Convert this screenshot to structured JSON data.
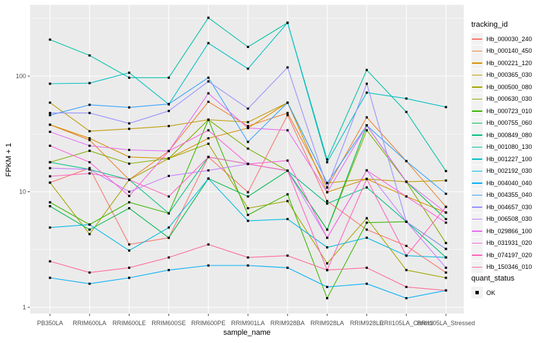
{
  "figure": {
    "panel_bg": "#ebebeb",
    "grid_color": "#ffffff",
    "tick_color": "#333333",
    "tick_label_color": "#4d4d4d",
    "y_axis": {
      "title": "FPKM + 1",
      "tick_labels": [
        "100",
        "10",
        "1"
      ],
      "tick_values": [
        100,
        10,
        1
      ],
      "minor_values": [
        3.162,
        31.62,
        316.2
      ]
    },
    "x_axis": {
      "title": "sample_name"
    }
  },
  "chart_data": {
    "type": "line",
    "title": "",
    "xlabel": "sample_name",
    "ylabel": "FPKM + 1",
    "yscale": "log10",
    "ylim": [
      0.9,
      420
    ],
    "grid": true,
    "legend_position": "right",
    "point_shape": "filled-black-square",
    "x": [
      "PB350LA",
      "RRIM600LA",
      "RRIM600LE",
      "RRIM600SE",
      "RRIM600PE",
      "RRIM901LA",
      "RRIM928BA",
      "RRIM928LA",
      "RRIM928LE",
      "RRII105LA_Control",
      "RRII105LA_Stressed"
    ],
    "series": [
      {
        "name": "Hb_000030_240",
        "color": "#F8766D",
        "values": [
          12,
          16,
          3.5,
          4.0,
          20,
          9.9,
          46,
          8.3,
          4.7,
          3.4,
          2.0
        ]
      },
      {
        "name": "Hb_000140_450",
        "color": "#EA8331",
        "values": [
          38,
          28,
          12.7,
          22.5,
          60,
          37,
          48,
          10.9,
          44,
          18.4,
          7.4
        ]
      },
      {
        "name": "Hb_000221_120",
        "color": "#D89000",
        "values": [
          38,
          29,
          20,
          19.4,
          29,
          35.6,
          59,
          9.9,
          12.9,
          9.1,
          6.6
        ]
      },
      {
        "name": "Hb_000365_030",
        "color": "#C09B00",
        "values": [
          59,
          33.4,
          35,
          37,
          42,
          40,
          59,
          11.9,
          12.9,
          12.2,
          12.5
        ]
      },
      {
        "name": "Hb_000500_080",
        "color": "#A3A500",
        "values": [
          12,
          4.3,
          12.7,
          19.4,
          26,
          7.2,
          8.3,
          2.4,
          5.9,
          2.1,
          1.8
        ]
      },
      {
        "name": "Hb_000630_030",
        "color": "#7CAE00",
        "values": [
          18,
          22.6,
          17.5,
          19.4,
          42,
          23.6,
          15.2,
          4.7,
          34,
          12.2,
          3.6
        ]
      },
      {
        "name": "Hb_000723_010",
        "color": "#39B600",
        "values": [
          8.1,
          5.2,
          8.1,
          6.5,
          42,
          6.3,
          9.5,
          1.2,
          5.4,
          5.5,
          3.2
        ]
      },
      {
        "name": "Hb_000755_060",
        "color": "#00BB4E",
        "values": [
          7.5,
          4.7,
          7.2,
          4.0,
          13,
          9.1,
          15.2,
          4.7,
          37.5,
          12.2,
          5.8
        ]
      },
      {
        "name": "Hb_000849_080",
        "color": "#00BF7D",
        "values": [
          18,
          15.6,
          12.7,
          6.5,
          20,
          17.4,
          15.2,
          7.9,
          10.9,
          5.5,
          2.7
        ]
      },
      {
        "name": "Hb_001080_130",
        "color": "#00C1A3",
        "values": [
          207,
          151,
          97,
          97,
          320,
          179,
          290,
          19,
          113,
          49,
          15.1
        ]
      },
      {
        "name": "Hb_001227_100",
        "color": "#00BFC4",
        "values": [
          86,
          87,
          107,
          57,
          193,
          116,
          290,
          18,
          72,
          64,
          54
        ]
      },
      {
        "name": "Hb_002192_030",
        "color": "#00BAE0",
        "values": [
          4.9,
          5.2,
          3.1,
          4.9,
          13,
          5.6,
          5.8,
          3.3,
          4.0,
          2.8,
          2.7
        ]
      },
      {
        "name": "Hb_004040_040",
        "color": "#00B0F6",
        "values": [
          1.8,
          1.6,
          1.8,
          2.1,
          2.3,
          2.3,
          2.2,
          1.5,
          1.6,
          1.2,
          1.4
        ]
      },
      {
        "name": "Hb_004355_040",
        "color": "#35A2FF",
        "values": [
          46,
          56.5,
          53.6,
          57.4,
          97,
          27,
          59,
          11.9,
          37.5,
          18.4,
          9.6
        ]
      },
      {
        "name": "Hb_004657_030",
        "color": "#9590FF",
        "values": [
          48,
          48,
          39,
          50,
          90,
          52.4,
          119,
          10.9,
          86,
          5.5,
          3.2
        ]
      },
      {
        "name": "Hb_006508_030",
        "color": "#C77CFF",
        "values": [
          16,
          15.6,
          10,
          13.7,
          15.3,
          17.4,
          15.2,
          4.0,
          15.3,
          5.5,
          2.2
        ]
      },
      {
        "name": "Hb_029866_100",
        "color": "#E76BF3",
        "values": [
          33,
          25,
          23,
          22.5,
          71,
          35.6,
          34,
          9.9,
          37.5,
          12.2,
          6.6
        ]
      },
      {
        "name": "Hb_031931_020",
        "color": "#FA62DB",
        "values": [
          25,
          18,
          9.2,
          22.5,
          34,
          17.4,
          18.6,
          4.0,
          15.3,
          9.1,
          5.4
        ]
      },
      {
        "name": "Hb_074197_020",
        "color": "#FF62BC",
        "values": [
          13.6,
          14.4,
          12.7,
          9.1,
          20,
          17.4,
          15.2,
          2.1,
          12.9,
          2.8,
          7.4
        ]
      },
      {
        "name": "Hb_150346_010",
        "color": "#FF6A98",
        "values": [
          2.5,
          2.0,
          2.2,
          2.7,
          3.5,
          2.7,
          2.8,
          2.1,
          2.2,
          1.5,
          1.4
        ]
      }
    ]
  },
  "legends": {
    "tracking": {
      "title": "tracking_id"
    },
    "quant": {
      "title": "quant_status",
      "ok_label": "OK"
    }
  }
}
